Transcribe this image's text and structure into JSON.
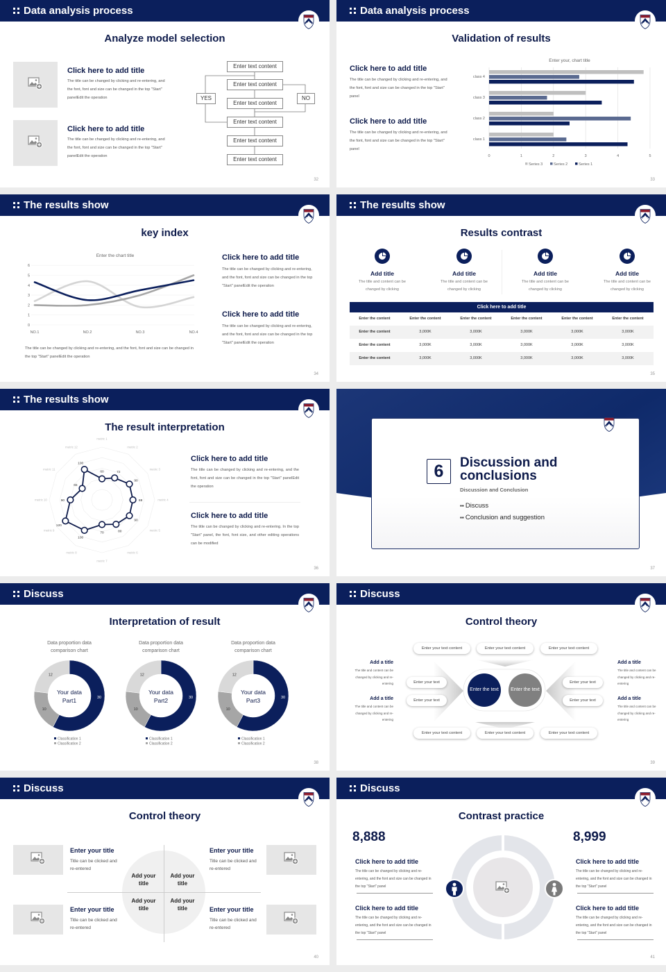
{
  "colors": {
    "navy": "#0b1f5c",
    "gray": "#a6a6a6",
    "light": "#d9d9d9",
    "crest_red": "#8b1a2b"
  },
  "slides": [
    {
      "header": "Data analysis process",
      "title": "Analyze model selection",
      "page": "32",
      "items": [
        {
          "title": "Click here to add title",
          "text": "The title can be changed by clicking and re-entering, and the font, font and size can be changed in the top \"Start\" panelEdit the operation"
        },
        {
          "title": "Click here to add title",
          "text": "The title can be changed by clicking and re-entering, and the font, font and size can be changed in the top \"Start\" panelEdit the operation"
        }
      ],
      "flow": {
        "boxes": [
          "Enter text content",
          "Enter text content",
          "Enter text content",
          "Enter text content",
          "Enter text content",
          "Enter text content"
        ],
        "yes": "YES",
        "no": "NO"
      }
    },
    {
      "header": "Data analysis process",
      "title": "Validation of results",
      "page": "33",
      "items": [
        {
          "title": "Click here to add title",
          "text": "The title can be changed by clicking and re-entering, and the font, font and size can be changed in the top \"Start\" panel"
        },
        {
          "title": "Click here to add title",
          "text": "The title can be changed by clicking and re-entering, and the font, font and size can be changed in the top \"Start\" panel"
        }
      ]
    },
    {
      "header": "The results show",
      "title": "key index",
      "page": "34",
      "caption": "The title can be changed by clicking and re-entering, and the font, font and size can be changed in the top \"Start\" panelEdit the operation",
      "items": [
        {
          "title": "Click here to add title",
          "text": "The title can be changed by clicking and re-entering, and the font, font and size can be changed in the top \"Start\" panelEdit the operation"
        },
        {
          "title": "Click here to add title",
          "text": "The title can be changed by clicking and re-entering, and the font, font and size can be changed in the top \"Start\" panelEdit the operation"
        }
      ]
    },
    {
      "header": "The results show",
      "title": "Results contrast",
      "page": "35",
      "features": [
        {
          "title": "Add title",
          "text": "The title and content can be changed by clicking"
        },
        {
          "title": "Add title",
          "text": "The title and content can be changed by clicking"
        },
        {
          "title": "Add title",
          "text": "The title and content can be changed by clicking"
        },
        {
          "title": "Add title",
          "text": "The title and content can be changed by clicking"
        }
      ],
      "table": {
        "title": "Click here to add title",
        "header": [
          "Enter the content",
          "Enter the content",
          "Enter the content",
          "Enter the content",
          "Enter the content",
          "Enter the content"
        ],
        "rows": [
          [
            "Enter the content",
            "3,000K",
            "3,000K",
            "3,000K",
            "3,000K",
            "3,000K"
          ],
          [
            "Enter the content",
            "3,000K",
            "3,000K",
            "3,000K",
            "3,000K",
            "3,000K"
          ],
          [
            "Enter the content",
            "3,000K",
            "3,000K",
            "3,000K",
            "3,000K",
            "3,000K"
          ]
        ]
      }
    },
    {
      "header": "The results show",
      "title": "The result interpretation",
      "page": "36",
      "items": [
        {
          "title": "Click here to add title",
          "text": "The title can be changed by clicking and re-entering, and the font, font and size can be changed in the top \"Start\" panelEdit the operation"
        },
        {
          "title": "Click here to add title",
          "text": "The title can be changed by clicking and re-entering. In the top \"Start\" panel, the font, font size, and other editing operations can be modified"
        }
      ]
    },
    {
      "number": "6",
      "title_line1": "Discussion and",
      "title_line2": "conclusions",
      "subtitle": "Discussion and Conclusion",
      "bullets": [
        "Discuss",
        "Conclusion and suggestion"
      ],
      "page": "37"
    },
    {
      "header": "Discuss",
      "title": "Interpretation of result",
      "page": "38"
    },
    {
      "header": "Discuss",
      "title": "Control theory",
      "page": "39",
      "top_pills": [
        "Enter your text content",
        "Enter your text content",
        "Enter your text content"
      ],
      "bottom_pills": [
        "Enter your text content",
        "Enter your text content",
        "Enter your text content"
      ],
      "left_pills": [
        "Enter your text",
        "Enter your text"
      ],
      "right_pills": [
        "Enter your text",
        "Enter your text"
      ],
      "center_left": "Enter the text",
      "center_right": "Enter the text",
      "left_items": [
        {
          "title": "Add a title",
          "text": "The title and content can be changed by clicking and re-entering"
        },
        {
          "title": "Add a title",
          "text": "The title and content can be changed by clicking and re-entering"
        }
      ],
      "right_items": [
        {
          "title": "Add a title",
          "text": "The title and content can be changed by clicking and re-entering"
        },
        {
          "title": "Add a title",
          "text": "The title and content can be changed by clicking and re-entering"
        }
      ]
    },
    {
      "header": "Discuss",
      "title": "Control theory",
      "page": "40",
      "items": [
        {
          "title": "Enter your title",
          "text": "Title can be clicked and re-entered"
        },
        {
          "title": "Enter your title",
          "text": "Title can be clicked and re-entered"
        },
        {
          "title": "Enter your title",
          "text": "Title can be clicked and re-entered"
        },
        {
          "title": "Enter your title",
          "text": "Title can be clicked and re-entered"
        }
      ],
      "quadrants": [
        "Add your title",
        "Add your title",
        "Add your title",
        "Add your title"
      ]
    },
    {
      "header": "Discuss",
      "title": "Contrast practice",
      "page": "41",
      "left_number": "8,888",
      "right_number": "8,999",
      "left_items": [
        {
          "title": "Click here to add title",
          "text": "The title can be changed by clicking and re-entering, and the font and size can be changed in the top \"Start\" panel"
        },
        {
          "title": "Click here to add title",
          "text": "The title can be changed by clicking and re-entering, and the font and size can be changed in the top \"Start\" panel"
        }
      ],
      "right_items": [
        {
          "title": "Click here to add title",
          "text": "The title can be changed by clicking and re-entering, and the font and size can be changed in the top \"Start\" panel"
        },
        {
          "title": "Click here to add title",
          "text": "The title can be changed by clicking and re-entering, and the font and size can be changed in the top \"Start\" panel"
        }
      ],
      "icons": [
        "male-icon",
        "female-icon"
      ]
    }
  ],
  "chart_data": [
    {
      "type": "bar",
      "orientation": "horizontal",
      "title": "Enter your, chart title",
      "categories": [
        "class 1",
        "class 2",
        "class 3",
        "class 4"
      ],
      "series": [
        {
          "name": "Series 1",
          "values": [
            4.3,
            2.5,
            3.5,
            4.5
          ],
          "color": "#0b1f5c"
        },
        {
          "name": "Series 2",
          "values": [
            2.4,
            4.4,
            1.8,
            2.8
          ],
          "color": "#5a6a90"
        },
        {
          "name": "Series 3",
          "values": [
            2.0,
            2.0,
            3.0,
            4.8
          ],
          "color": "#bfbfbf"
        }
      ],
      "xlim": [
        0,
        5
      ],
      "xticks": [
        "0",
        "1",
        "2",
        "3",
        "4",
        "5"
      ],
      "grid": true,
      "legend": "bottom"
    },
    {
      "type": "line",
      "title": "Enter the chart title",
      "categories": [
        "NO.1",
        "NO.2",
        "NO.3",
        "NO.4"
      ],
      "series": [
        {
          "values": [
            4.3,
            2.5,
            3.5,
            4.5
          ],
          "color": "#0b1f5c"
        },
        {
          "values": [
            2.4,
            4.4,
            1.8,
            2.8
          ],
          "color": "#d4d4d4"
        },
        {
          "values": [
            2.0,
            2.0,
            3.0,
            5.0
          ],
          "color": "#a6a6a6"
        }
      ],
      "ylim": [
        0,
        6
      ],
      "yticks": [
        "0",
        "1",
        "2",
        "3",
        "4",
        "5",
        "6"
      ],
      "grid": true,
      "smooth": true
    },
    {
      "type": "radar",
      "categories": [
        "metric 1",
        "metric 2",
        "metric 3",
        "metric 4",
        "metric 5",
        "metric 6",
        "metric 7",
        "metric 8",
        "metric 9",
        "metric 10",
        "metric 11",
        "metric 12"
      ],
      "values": [
        60,
        72,
        90,
        88,
        90,
        80,
        70,
        100,
        120,
        90,
        65,
        100
      ],
      "labels": [
        "60",
        "72",
        "90",
        "88",
        "90",
        "80",
        "70",
        "100",
        "120",
        "90",
        "65",
        "100"
      ],
      "rmax": 150
    },
    {
      "type": "pie",
      "donut": true,
      "title": "Data proportion data comparison chart",
      "center_label": [
        "Your data",
        "Part1"
      ],
      "values": [
        30,
        10,
        12
      ],
      "labels": [
        "30",
        "10",
        "12"
      ],
      "legend": [
        "Classification 1",
        "Classification 2"
      ]
    },
    {
      "type": "pie",
      "donut": true,
      "title": "Data proportion data comparison chart",
      "center_label": [
        "Your data",
        "Part2"
      ],
      "values": [
        30,
        10,
        12
      ],
      "labels": [
        "30",
        "10",
        "12"
      ],
      "legend": [
        "Classification 1",
        "Classification 2"
      ]
    },
    {
      "type": "pie",
      "donut": true,
      "title": "Data proportion data comparison chart",
      "center_label": [
        "Your data",
        "Part3"
      ],
      "values": [
        30,
        10,
        12
      ],
      "labels": [
        "30",
        "10",
        "12"
      ],
      "legend": [
        "Classification 1",
        "Classification 2"
      ]
    }
  ]
}
